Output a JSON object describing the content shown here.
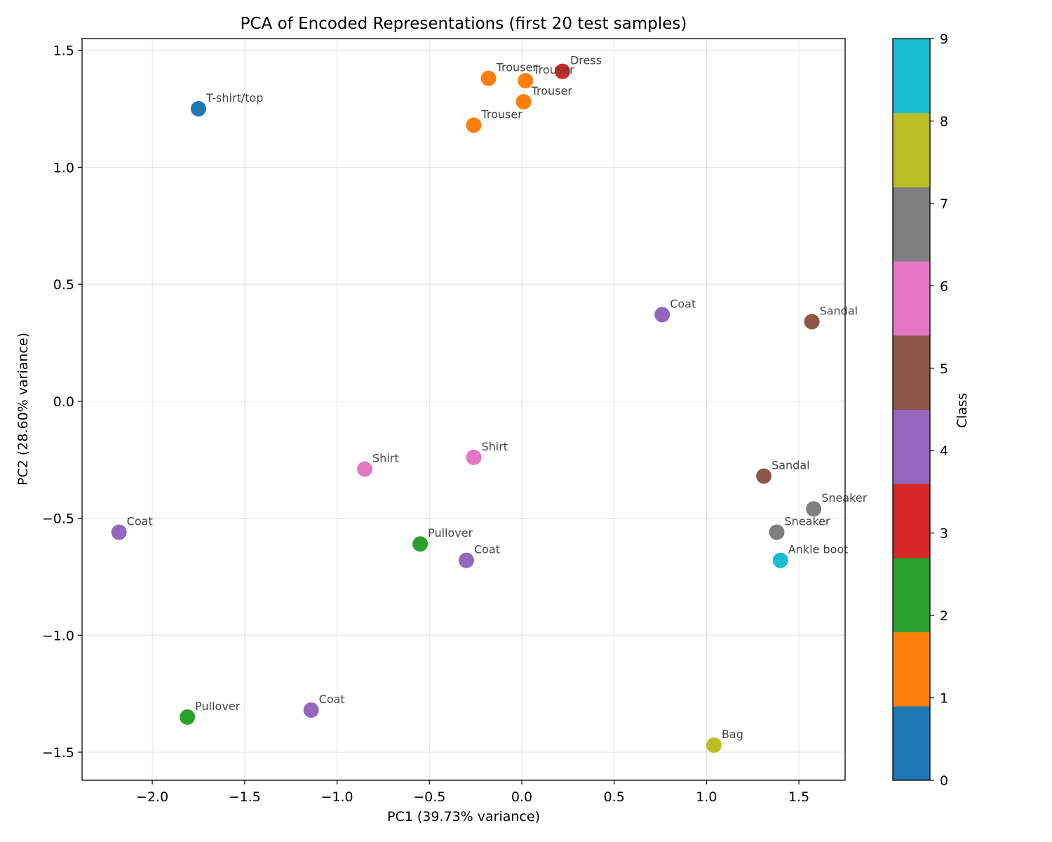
{
  "chart_data": {
    "type": "scatter",
    "title": "PCA of Encoded Representations (first 20 test samples)",
    "xlabel": "PC1 (39.73% variance)",
    "ylabel": "PC2 (28.60% variance)",
    "xlim": [
      -2.38,
      1.75
    ],
    "ylim": [
      -1.62,
      1.55
    ],
    "xticks": [
      -2.0,
      -1.5,
      -1.0,
      -0.5,
      0.0,
      0.5,
      1.0,
      1.5
    ],
    "xtick_labels": [
      "−2.0",
      "−1.5",
      "−1.0",
      "−0.5",
      "0.0",
      "0.5",
      "1.0",
      "1.5"
    ],
    "yticks": [
      -1.5,
      -1.0,
      -0.5,
      0.0,
      0.5,
      1.0,
      1.5
    ],
    "ytick_labels": [
      "−1.5",
      "−1.0",
      "−0.5",
      "0.0",
      "0.5",
      "1.0",
      "1.5"
    ],
    "grid": true,
    "colorbar": {
      "label": "Class",
      "range": [
        0,
        9
      ],
      "ticks": [
        0,
        1,
        2,
        3,
        4,
        5,
        6,
        7,
        8,
        9
      ],
      "colors": [
        "#1f77b4",
        "#ff7f0e",
        "#2ca02c",
        "#d62728",
        "#9467bd",
        "#8c564b",
        "#e377c2",
        "#7f7f7f",
        "#bcbd22",
        "#17becf"
      ]
    },
    "points": [
      {
        "x": -1.75,
        "y": 1.25,
        "class": 0,
        "label": "T-shirt/top"
      },
      {
        "x": -0.18,
        "y": 1.38,
        "class": 1,
        "label": "Trouser"
      },
      {
        "x": 0.02,
        "y": 1.37,
        "class": 1,
        "label": "Trouser"
      },
      {
        "x": 0.01,
        "y": 1.28,
        "class": 1,
        "label": "Trouser"
      },
      {
        "x": -0.26,
        "y": 1.18,
        "class": 1,
        "label": "Trouser"
      },
      {
        "x": 0.22,
        "y": 1.41,
        "class": 3,
        "label": "Dress"
      },
      {
        "x": 0.76,
        "y": 0.37,
        "class": 4,
        "label": "Coat"
      },
      {
        "x": 1.57,
        "y": 0.34,
        "class": 5,
        "label": "Sandal"
      },
      {
        "x": -0.26,
        "y": -0.24,
        "class": 6,
        "label": "Shirt"
      },
      {
        "x": -0.85,
        "y": -0.29,
        "class": 6,
        "label": "Shirt"
      },
      {
        "x": 1.31,
        "y": -0.32,
        "class": 5,
        "label": "Sandal"
      },
      {
        "x": 1.58,
        "y": -0.46,
        "class": 7,
        "label": "Sneaker"
      },
      {
        "x": 1.38,
        "y": -0.56,
        "class": 7,
        "label": "Sneaker"
      },
      {
        "x": -2.18,
        "y": -0.56,
        "class": 4,
        "label": "Coat"
      },
      {
        "x": -0.55,
        "y": -0.61,
        "class": 2,
        "label": "Pullover"
      },
      {
        "x": -0.3,
        "y": -0.68,
        "class": 4,
        "label": "Coat"
      },
      {
        "x": 1.4,
        "y": -0.68,
        "class": 9,
        "label": "Ankle boot"
      },
      {
        "x": -1.81,
        "y": -1.35,
        "class": 2,
        "label": "Pullover"
      },
      {
        "x": -1.14,
        "y": -1.32,
        "class": 4,
        "label": "Coat"
      },
      {
        "x": 1.04,
        "y": -1.47,
        "class": 8,
        "label": "Bag"
      }
    ]
  }
}
